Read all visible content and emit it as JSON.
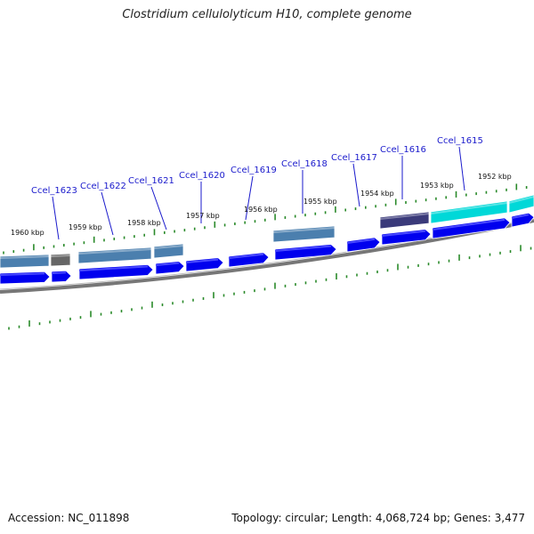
{
  "title": "Clostridium cellulolyticum H10, complete genome",
  "footer": {
    "accession": "Accession: NC_011898",
    "summary": "Topology: circular; Length: 4,068,724 bp; Genes: 3,477"
  },
  "colors": {
    "cds": "#0000ee",
    "cds_light": "#4a4aff",
    "backbone": "#777777",
    "tick": "#2a8a2a",
    "gene_label": "#1a1acc",
    "feature_blue": "#4b7fae",
    "feature_gray": "#666666",
    "feature_purple": "#3a3a7a",
    "feature_cyan": "#00d8d8"
  },
  "kbp_labels": [
    "1960 kbp",
    "1959 kbp",
    "1958 kbp",
    "1957 kbp",
    "1956 kbp",
    "1955 kbp",
    "1954 kbp",
    "1953 kbp",
    "1952 kbp"
  ],
  "gene_labels": [
    "Ccel_1623",
    "Ccel_1622",
    "Ccel_1621",
    "Ccel_1620",
    "Ccel_1619",
    "Ccel_1618",
    "Ccel_1617",
    "Ccel_1616",
    "Ccel_1615"
  ]
}
